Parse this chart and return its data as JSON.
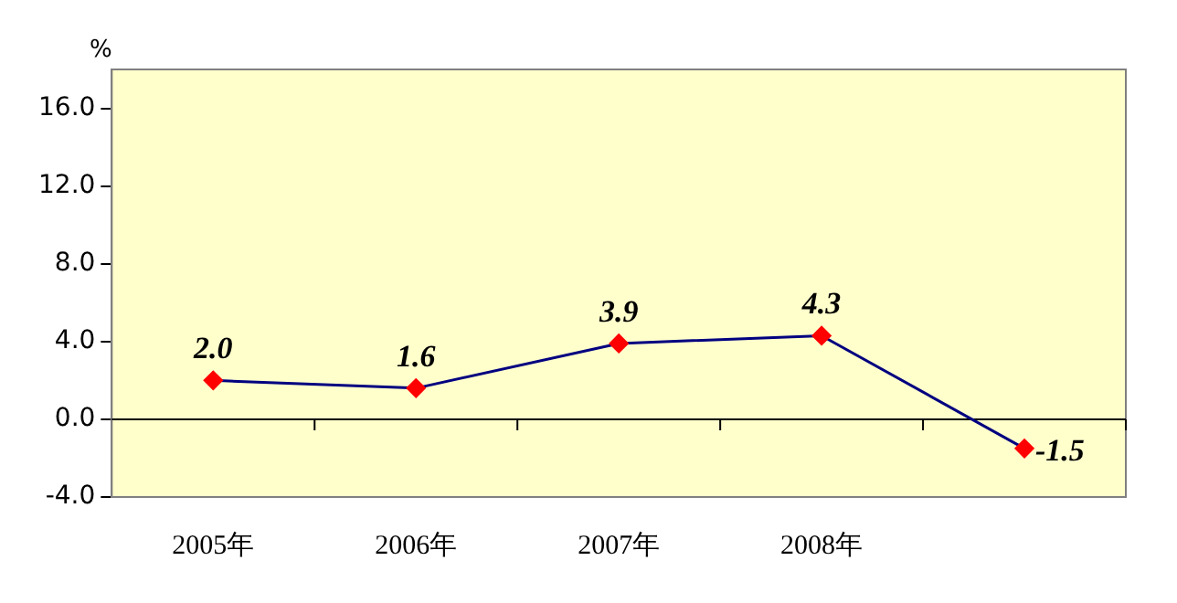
{
  "chart_data": {
    "type": "line",
    "ylabel": "%",
    "categories": [
      "2005年",
      "2006年",
      "2007年",
      "2008年",
      null
    ],
    "series": [
      {
        "color": "#000080",
        "values": [
          2.0,
          1.6,
          3.9,
          4.3,
          -1.5
        ]
      }
    ],
    "value_labels": [
      "2.0",
      "1.6",
      "3.9",
      "4.3",
      "-1.5"
    ],
    "marker": "diamond",
    "legend": false,
    "ref_lines": [
      {
        "axis": "y",
        "value": 0,
        "color": "#000000"
      }
    ],
    "ylim": [
      -4,
      18
    ],
    "yticks": [
      {
        "value": -4,
        "label": "-4.0"
      },
      {
        "value": 0,
        "label": "0.0"
      },
      {
        "value": 4,
        "label": "4.0"
      },
      {
        "value": 8,
        "label": "8.0"
      },
      {
        "value": 12,
        "label": "12.0"
      },
      {
        "value": 16,
        "label": "16.0"
      }
    ]
  }
}
